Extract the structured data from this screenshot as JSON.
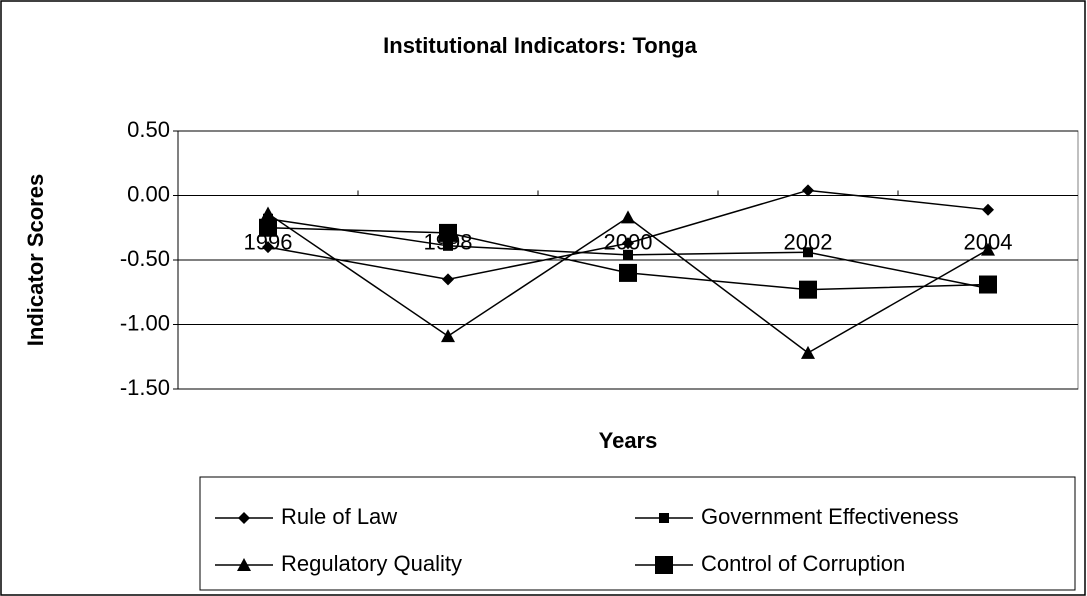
{
  "chart_data": {
    "type": "line",
    "title": "Institutional Indicators: Tonga",
    "x_label": "Years",
    "y_label": "Indicator Scores",
    "categories": [
      "1996",
      "1998",
      "2000",
      "2002",
      "2004"
    ],
    "series": [
      {
        "name": "Rule of Law",
        "color": "#000000",
        "marker": "diamond",
        "values": [
          -0.4,
          -0.65,
          -0.37,
          0.04,
          -0.11
        ]
      },
      {
        "name": "Government Effectiveness",
        "color": "#000000",
        "marker": "square",
        "values": [
          -0.18,
          -0.39,
          -0.46,
          -0.44,
          -0.72
        ]
      },
      {
        "name": "Regulatory Quality",
        "color": "#000000",
        "marker": "triangle",
        "values": [
          -0.14,
          -1.09,
          -0.17,
          -1.22,
          -0.42
        ]
      },
      {
        "name": "Control of Corruption",
        "color": "#000000",
        "marker": "big-square",
        "values": [
          -0.25,
          -0.29,
          -0.6,
          -0.73,
          -0.69
        ]
      }
    ],
    "ylim": [
      -1.5,
      0.5
    ],
    "yticks": [
      {
        "value": 0.5,
        "label": "0.50"
      },
      {
        "value": 0,
        "label": "0.00"
      },
      {
        "value": -0.5,
        "label": "-0.50"
      },
      {
        "value": -1,
        "label": "-1.00"
      },
      {
        "value": -1.5,
        "label": "-1.50"
      }
    ],
    "grid": true,
    "legend": "bottom"
  }
}
